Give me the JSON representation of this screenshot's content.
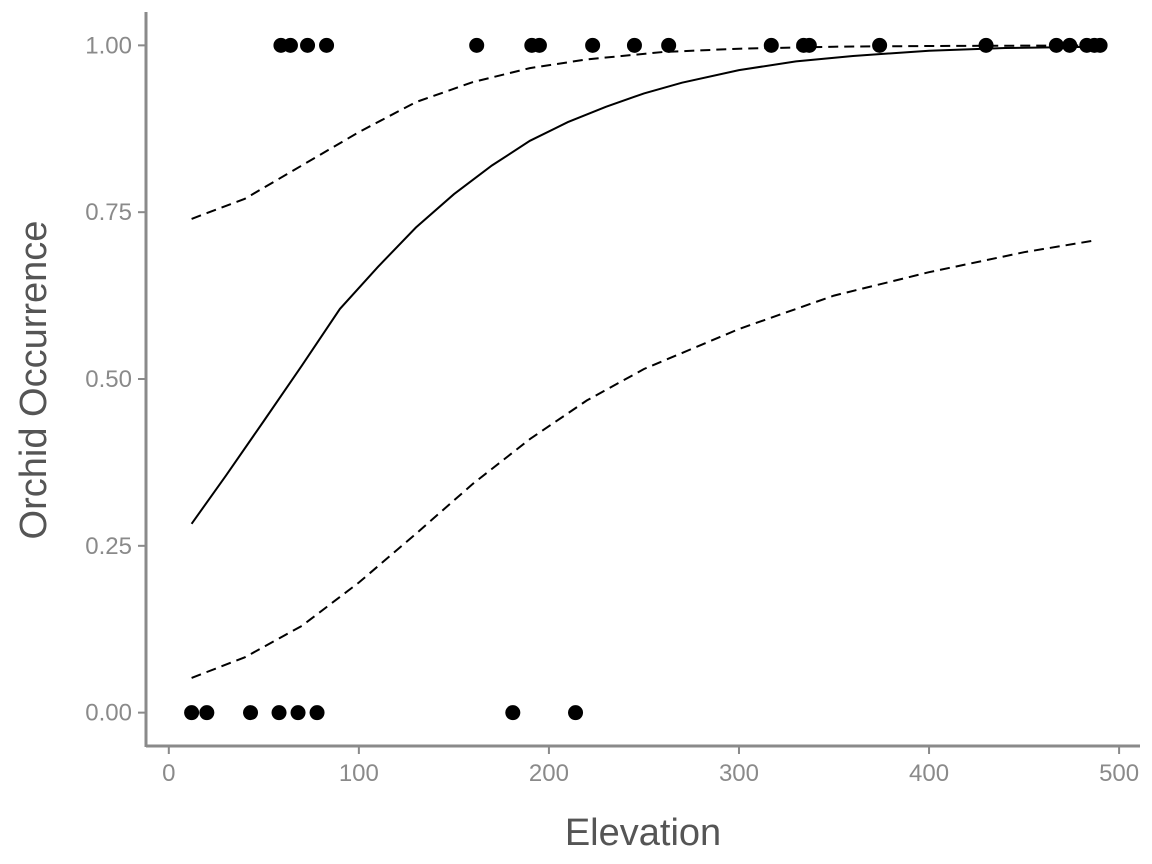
{
  "chart_data": {
    "type": "scatter",
    "title": "",
    "xlabel": "Elevation",
    "ylabel": "Orchid Occurrence",
    "xlim": [
      -12,
      511
    ],
    "ylim": [
      -0.05,
      1.05
    ],
    "x_ticks": [
      0,
      100,
      200,
      300,
      400,
      500
    ],
    "y_ticks": [
      0.0,
      0.25,
      0.5,
      0.75,
      1.0
    ],
    "x_tick_labels": [
      "0",
      "100",
      "200",
      "300",
      "400",
      "500"
    ],
    "y_tick_labels": [
      "0.00",
      "0.25",
      "0.50",
      "0.75",
      "1.00"
    ],
    "grid": false,
    "series": [
      {
        "kind": "points",
        "color": "#000000",
        "points": [
          {
            "x": 12,
            "y": 0
          },
          {
            "x": 20,
            "y": 0
          },
          {
            "x": 43,
            "y": 0
          },
          {
            "x": 58,
            "y": 0
          },
          {
            "x": 68,
            "y": 0
          },
          {
            "x": 78,
            "y": 0
          },
          {
            "x": 181,
            "y": 0
          },
          {
            "x": 214,
            "y": 0
          },
          {
            "x": 59,
            "y": 1
          },
          {
            "x": 64,
            "y": 1
          },
          {
            "x": 73,
            "y": 1
          },
          {
            "x": 83,
            "y": 1
          },
          {
            "x": 162,
            "y": 1
          },
          {
            "x": 191,
            "y": 1
          },
          {
            "x": 195,
            "y": 1
          },
          {
            "x": 223,
            "y": 1
          },
          {
            "x": 245,
            "y": 1
          },
          {
            "x": 263,
            "y": 1
          },
          {
            "x": 317,
            "y": 1
          },
          {
            "x": 334,
            "y": 1
          },
          {
            "x": 337,
            "y": 1
          },
          {
            "x": 374,
            "y": 1
          },
          {
            "x": 430,
            "y": 1
          },
          {
            "x": 467,
            "y": 1
          },
          {
            "x": 474,
            "y": 1
          },
          {
            "x": 483,
            "y": 1
          },
          {
            "x": 487,
            "y": 1
          },
          {
            "x": 490,
            "y": 1
          }
        ]
      },
      {
        "kind": "line",
        "style": "solid",
        "color": "#000000",
        "points": [
          [
            12,
            0.283
          ],
          [
            30,
            0.355
          ],
          [
            50,
            0.437
          ],
          [
            70,
            0.52
          ],
          [
            90,
            0.605
          ],
          [
            110,
            0.668
          ],
          [
            130,
            0.727
          ],
          [
            150,
            0.777
          ],
          [
            170,
            0.82
          ],
          [
            190,
            0.857
          ],
          [
            210,
            0.885
          ],
          [
            230,
            0.908
          ],
          [
            250,
            0.928
          ],
          [
            270,
            0.944
          ],
          [
            300,
            0.963
          ],
          [
            330,
            0.976
          ],
          [
            360,
            0.984
          ],
          [
            400,
            0.992
          ],
          [
            440,
            0.996
          ],
          [
            488,
            0.998
          ]
        ]
      },
      {
        "kind": "line",
        "style": "dashed",
        "color": "#000000",
        "points": [
          [
            12,
            0.74
          ],
          [
            40,
            0.77
          ],
          [
            70,
            0.82
          ],
          [
            100,
            0.87
          ],
          [
            130,
            0.915
          ],
          [
            160,
            0.945
          ],
          [
            190,
            0.966
          ],
          [
            220,
            0.979
          ],
          [
            260,
            0.99
          ],
          [
            300,
            0.995
          ],
          [
            350,
            0.998
          ],
          [
            400,
            0.999
          ],
          [
            488,
            1.0
          ]
        ]
      },
      {
        "kind": "line",
        "style": "dashed",
        "color": "#000000",
        "points": [
          [
            12,
            0.052
          ],
          [
            40,
            0.083
          ],
          [
            70,
            0.13
          ],
          [
            100,
            0.195
          ],
          [
            130,
            0.268
          ],
          [
            160,
            0.343
          ],
          [
            190,
            0.41
          ],
          [
            220,
            0.468
          ],
          [
            250,
            0.515
          ],
          [
            300,
            0.575
          ],
          [
            350,
            0.625
          ],
          [
            400,
            0.66
          ],
          [
            450,
            0.69
          ],
          [
            488,
            0.708
          ]
        ]
      }
    ]
  }
}
